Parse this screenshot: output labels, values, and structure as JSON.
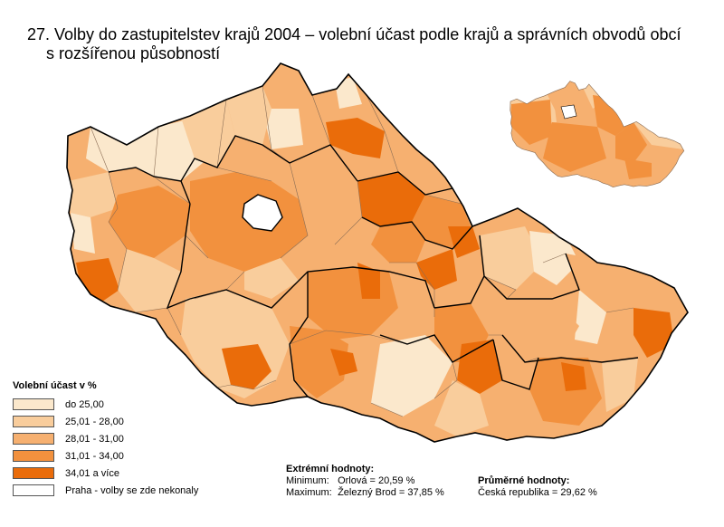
{
  "title": {
    "line1": "27. Volby do zastupitelstev krajů 2004 – volební účast podle krajů a správních obvodů obcí",
    "line2": "s rozšířenou působností"
  },
  "colors": {
    "c1": "#fbe8cc",
    "c2": "#f9cd9c",
    "c3": "#f6b070",
    "c4": "#f2913e",
    "c5": "#ea6c0a",
    "prague": "#ffffff",
    "border": "#000000",
    "district": "#8a6d55"
  },
  "legend": {
    "title": "Volební účast v %",
    "items": [
      {
        "label": "do 25,00",
        "color": "#fbe8cc"
      },
      {
        "label": "25,01 - 28,00",
        "color": "#f9cd9c"
      },
      {
        "label": "28,01 - 31,00",
        "color": "#f6b070"
      },
      {
        "label": "31,01 - 34,00",
        "color": "#f2913e"
      },
      {
        "label": "34,01 a více",
        "color": "#ea6c0a"
      },
      {
        "label": "Praha - volby se zde nekonaly",
        "color": "#ffffff"
      }
    ]
  },
  "extremes": {
    "title": "Extrémní hodnoty:",
    "min_label": "Minimum:",
    "min_value": "Orlová = 20,59 %",
    "max_label": "Maximum:",
    "max_value": "Železný Brod = 37,85 %"
  },
  "averages": {
    "title": "Průměrné hodnoty:",
    "country": "Česká republika = 29,62 %"
  }
}
